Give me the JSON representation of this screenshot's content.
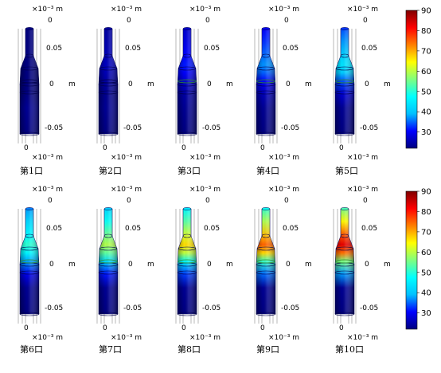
{
  "panels": [
    {
      "caption": "第1口",
      "level": 0.0
    },
    {
      "caption": "第2口",
      "level": 0.06
    },
    {
      "caption": "第3口",
      "level": 0.14
    },
    {
      "caption": "第4口",
      "level": 0.22
    },
    {
      "caption": "第5口",
      "level": 0.32
    },
    {
      "caption": "第6口",
      "level": 0.42
    },
    {
      "caption": "第7口",
      "level": 0.55
    },
    {
      "caption": "第8口",
      "level": 0.66
    },
    {
      "caption": "第9口",
      "level": 0.78
    },
    {
      "caption": "第10口",
      "level": 0.9
    }
  ],
  "axis_labels": {
    "exponent_top": "×10⁻³ m",
    "exponent_bottom": "×10⁻³ m",
    "tick_top": "0.05",
    "tick_mid": "0",
    "tick_bottom": "-0.05",
    "unit_m": "m",
    "z_zero_top": "0",
    "z_zero_bottom": "0"
  },
  "colorbar": {
    "ticks": [
      "90",
      "80",
      "70",
      "60",
      "50",
      "40",
      "30"
    ],
    "range": [
      22,
      90
    ],
    "colormap": [
      "#00007f",
      "#0000ff",
      "#00bfff",
      "#00ffff",
      "#7fff7f",
      "#ffff00",
      "#ff7f00",
      "#ff0000",
      "#7f0000"
    ]
  }
}
